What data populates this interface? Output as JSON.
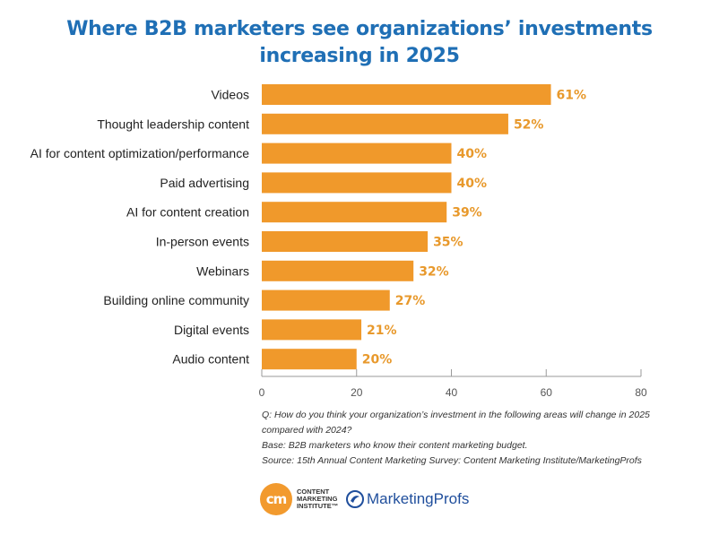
{
  "chart_data": {
    "type": "bar",
    "orientation": "horizontal",
    "title_lines": [
      "Where B2B marketers see organizations’ investments",
      "increasing in 2025"
    ],
    "categories": [
      "Videos",
      "Thought leadership content",
      "AI for content optimization/performance",
      "Paid advertising",
      "AI for content creation",
      "In-person events",
      "Webinars",
      "Building online community",
      "Digital events",
      "Audio content"
    ],
    "values": [
      61,
      52,
      40,
      40,
      39,
      35,
      32,
      27,
      21,
      20
    ],
    "value_labels": [
      "61%",
      "52%",
      "40%",
      "40%",
      "39%",
      "35%",
      "32%",
      "27%",
      "21%",
      "20%"
    ],
    "xlim": [
      0,
      80
    ],
    "xticks": [
      0,
      20,
      40,
      60,
      80
    ],
    "xtick_labels": [
      "0",
      "20",
      "40",
      "60",
      "80"
    ],
    "grid": false,
    "colors": {
      "bar": "#f0992b",
      "value_label": "#e8992c",
      "title": "#1f6fb5"
    }
  },
  "notes": {
    "question": "Q: How do you think your organization’s investment in the following areas will change in 2025 compared with 2024?",
    "base": "Base: B2B marketers who know their content marketing budget.",
    "source": "Source: 15th Annual Content Marketing Survey: Content Marketing Institute/MarketingProfs"
  },
  "logos": {
    "cmi_mark": "cm",
    "cmi_text": "CONTENT MARKETING INSTITUTE™",
    "marketingprofs_text": "MarketingProfs"
  }
}
